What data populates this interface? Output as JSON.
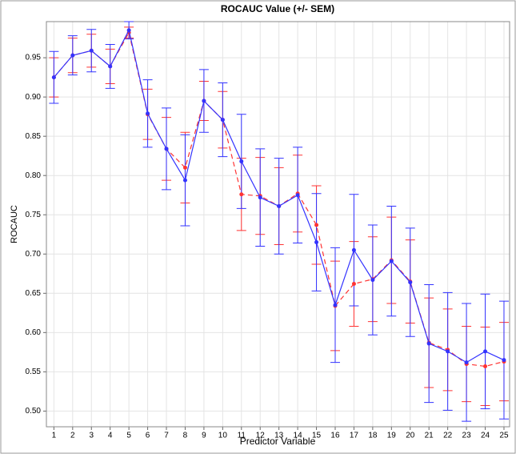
{
  "chart_data": {
    "type": "line",
    "title": "ROCAUC Value (+/- SEM)",
    "x_label": "Predictor Variable",
    "y_label": "ROCAUC",
    "x": [
      1,
      2,
      3,
      4,
      5,
      6,
      7,
      8,
      9,
      10,
      11,
      12,
      13,
      14,
      15,
      16,
      17,
      18,
      19,
      20,
      21,
      22,
      23,
      24,
      25
    ],
    "series": [
      {
        "color": "#ff3333",
        "line_style": "dashed",
        "values": [
          0.925,
          0.953,
          0.959,
          0.939,
          0.982,
          0.878,
          0.834,
          0.81,
          0.895,
          0.871,
          0.776,
          0.774,
          0.761,
          0.777,
          0.737,
          0.634,
          0.662,
          0.668,
          0.692,
          0.665,
          0.587,
          0.578,
          0.56,
          0.557,
          0.563
        ],
        "errors": [
          0.025,
          0.022,
          0.021,
          0.022,
          0.007,
          0.032,
          0.04,
          0.045,
          0.025,
          0.036,
          0.046,
          0.049,
          0.049,
          0.049,
          0.05,
          0.057,
          0.054,
          0.054,
          0.055,
          0.053,
          0.057,
          0.052,
          0.048,
          0.05,
          0.05
        ]
      },
      {
        "color": "#3333ff",
        "line_style": "solid",
        "values": [
          0.925,
          0.953,
          0.959,
          0.939,
          0.985,
          0.879,
          0.834,
          0.794,
          0.895,
          0.871,
          0.818,
          0.772,
          0.761,
          0.775,
          0.715,
          0.635,
          0.705,
          0.667,
          0.691,
          0.664,
          0.586,
          0.576,
          0.562,
          0.576,
          0.565
        ],
        "errors": [
          0.033,
          0.025,
          0.027,
          0.028,
          0.011,
          0.043,
          0.052,
          0.058,
          0.04,
          0.047,
          0.06,
          0.062,
          0.061,
          0.061,
          0.062,
          0.073,
          0.071,
          0.07,
          0.07,
          0.069,
          0.075,
          0.075,
          0.075,
          0.073,
          0.075
        ]
      }
    ],
    "xlim": [
      0.6,
      25.3
    ],
    "ylim": [
      0.48,
      0.996
    ],
    "xticks": [
      1,
      2,
      3,
      4,
      5,
      6,
      7,
      8,
      9,
      10,
      11,
      12,
      13,
      14,
      15,
      16,
      17,
      18,
      19,
      20,
      21,
      22,
      23,
      24,
      25
    ],
    "yticks": [
      {
        "value": 0.5,
        "label": "0.50"
      },
      0.55,
      {
        "value": 0.6,
        "label": "0.60"
      },
      0.65,
      {
        "value": 0.7,
        "label": "0.70"
      },
      0.75,
      {
        "value": 0.8,
        "label": "0.80"
      },
      0.85,
      {
        "value": 0.9,
        "label": "0.90"
      },
      0.95
    ],
    "grid": true
  }
}
